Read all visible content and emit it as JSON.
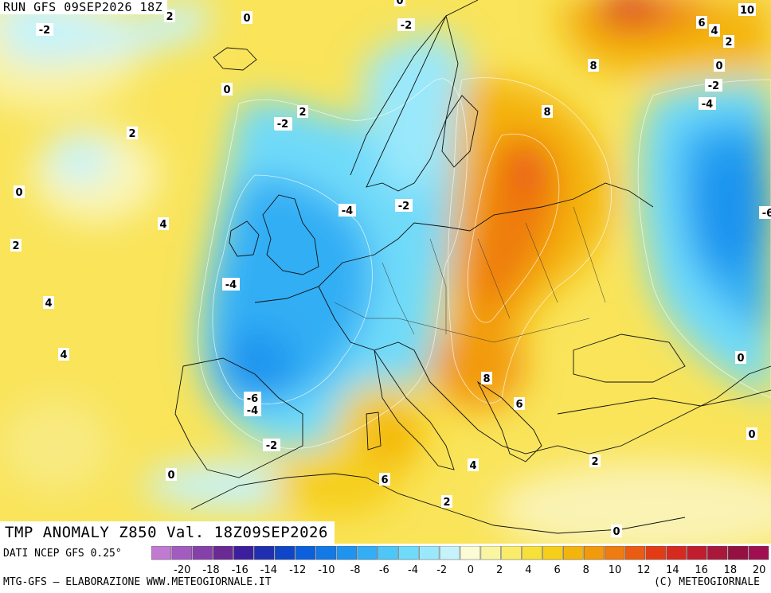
{
  "header": {
    "run_label": "RUN GFS 09SEP2026 18Z"
  },
  "footer": {
    "title": "TMP ANOMALY Z850 Val. 18Z09SEP2026",
    "source": "DATI NCEP GFS 0.25°",
    "credit_left": "MTG-GFS — ELABORAZIONE WWW.METEOGIORNALE.IT",
    "credit_right": "(C) METEOGIORNALE"
  },
  "legend": {
    "ticks": [
      "-20",
      "-18",
      "-16",
      "-14",
      "-12",
      "-10",
      "-8",
      "-6",
      "-4",
      "-2",
      "0",
      "2",
      "4",
      "6",
      "8",
      "10",
      "12",
      "14",
      "16",
      "18",
      "20"
    ],
    "colors": [
      "#c07ad0",
      "#a25cc0",
      "#8640aa",
      "#6a2a94",
      "#3c1f9c",
      "#1f2fb0",
      "#0f46c8",
      "#0c60dc",
      "#1279e6",
      "#1f94ef",
      "#33aef4",
      "#4ec6f7",
      "#70daf9",
      "#9ae8fb",
      "#c6f3fb",
      "#fbfbd6",
      "#faf5a0",
      "#f9ec6a",
      "#f8e03a",
      "#f6cf1a",
      "#f4b40e",
      "#f29a0e",
      "#ef7c10",
      "#ea5c12",
      "#e23c16",
      "#d42a20",
      "#c01e2e",
      "#a8183a",
      "#941242",
      "#a01050"
    ]
  },
  "contour_labels": [
    {
      "text": "-2",
      "color": "#000"
    },
    {
      "text": "2",
      "color": "#000"
    },
    {
      "text": "0",
      "color": "#000"
    },
    {
      "text": "-2",
      "color": "#000"
    },
    {
      "text": "2",
      "color": "#000"
    },
    {
      "text": "-2",
      "color": "#000"
    },
    {
      "text": "0",
      "color": "#000"
    },
    {
      "text": "10",
      "color": "#000"
    },
    {
      "text": "6",
      "color": "#000"
    },
    {
      "text": "4",
      "color": "#000"
    },
    {
      "text": "2",
      "color": "#000"
    },
    {
      "text": "8",
      "color": "#000"
    },
    {
      "text": "0",
      "color": "#000"
    },
    {
      "text": "-2",
      "color": "#000"
    },
    {
      "text": "-4",
      "color": "#000"
    },
    {
      "text": "0",
      "color": "#000"
    },
    {
      "text": "2",
      "color": "#000"
    },
    {
      "text": "-2",
      "color": "#000"
    },
    {
      "text": "2",
      "color": "#000"
    },
    {
      "text": "8",
      "color": "#000"
    },
    {
      "text": "0",
      "color": "#000"
    },
    {
      "text": "4",
      "color": "#000"
    },
    {
      "text": "-4",
      "color": "#000"
    },
    {
      "text": "-2",
      "color": "#000"
    },
    {
      "text": "-6",
      "color": "#000"
    },
    {
      "text": "2",
      "color": "#000"
    },
    {
      "text": "-4",
      "color": "#000"
    },
    {
      "text": "4",
      "color": "#000"
    },
    {
      "text": "4",
      "color": "#000"
    },
    {
      "text": "0",
      "color": "#000"
    },
    {
      "text": "8",
      "color": "#000"
    },
    {
      "text": "-6",
      "color": "#000"
    },
    {
      "text": "-4",
      "color": "#000"
    },
    {
      "text": "6",
      "color": "#000"
    },
    {
      "text": "0",
      "color": "#000"
    },
    {
      "text": "-2",
      "color": "#000"
    },
    {
      "text": "0",
      "color": "#000"
    },
    {
      "text": "4",
      "color": "#000"
    },
    {
      "text": "2",
      "color": "#000"
    },
    {
      "text": "6",
      "color": "#000"
    },
    {
      "text": "2",
      "color": "#000"
    },
    {
      "text": "0",
      "color": "#000"
    }
  ]
}
